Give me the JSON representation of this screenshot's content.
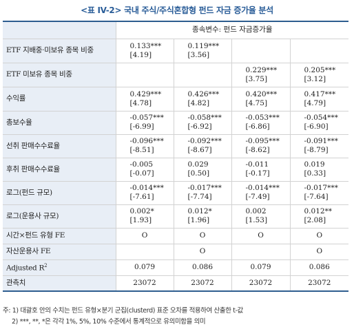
{
  "title": "<표 IV-2> 국내 주식/주식혼합형 펀드 자금 증가율 분석",
  "header": {
    "dependent_variable": "종속변수: 펀드 자금증가율"
  },
  "rows": [
    {
      "label": "ETF 지배중·미보유 종목 비중",
      "cells": [
        [
          "0.133***",
          "[4.19]"
        ],
        [
          "0.119***",
          "[3.56]"
        ],
        [
          "",
          ""
        ],
        [
          "",
          ""
        ]
      ]
    },
    {
      "label": "ETF 미보유 종목 비중",
      "cells": [
        [
          "",
          ""
        ],
        [
          "",
          ""
        ],
        [
          "0.229***",
          "[3.75]"
        ],
        [
          "0.205***",
          "[3.12]"
        ]
      ]
    },
    {
      "label": "수익률",
      "cells": [
        [
          "0.429***",
          "[4.78]"
        ],
        [
          "0.426***",
          "[4.82]"
        ],
        [
          "0.420***",
          "[4.75]"
        ],
        [
          "0.417***",
          "[4.79]"
        ]
      ]
    },
    {
      "label": "총보수율",
      "cells": [
        [
          "-0.057***",
          "[-6.99]"
        ],
        [
          "-0.058***",
          "[-6.92]"
        ],
        [
          "-0.053***",
          "[-6.86]"
        ],
        [
          "-0.054***",
          "[-6.90]"
        ]
      ]
    },
    {
      "label": "선취 판매수수료율",
      "cells": [
        [
          "-0.096***",
          "[-8.51]"
        ],
        [
          "-0.092***",
          "[-8.67]"
        ],
        [
          "-0.095***",
          "[-8.62]"
        ],
        [
          "-0.091***",
          "[-8.79]"
        ]
      ]
    },
    {
      "label": "후취 판매수수료율",
      "cells": [
        [
          "-0.005",
          "[-0.07]"
        ],
        [
          "0.029",
          "[0.50]"
        ],
        [
          "-0.011",
          "[-0.17]"
        ],
        [
          "0.019",
          "[0.33]"
        ]
      ]
    },
    {
      "label": "로그(펀드 규모)",
      "cells": [
        [
          "-0.014***",
          "[-7.61]"
        ],
        [
          "-0.017***",
          "[-7.74]"
        ],
        [
          "-0.014***",
          "[-7.49]"
        ],
        [
          "-0.017***",
          "[-7.64]"
        ]
      ]
    },
    {
      "label": "로그(운용사 규모)",
      "cells": [
        [
          "0.002*",
          "[1.93]"
        ],
        [
          "0.012*",
          "[1.96]"
        ],
        [
          "0.002",
          "[1.53]"
        ],
        [
          "0.012**",
          "[2.08]"
        ]
      ]
    }
  ],
  "fe_rows": [
    {
      "label": "시간×펀드 유형 FE",
      "cells": [
        "O",
        "O",
        "O",
        "O"
      ]
    },
    {
      "label": "자산운용사 FE",
      "cells": [
        "",
        "O",
        "",
        "O"
      ]
    }
  ],
  "stat_rows": [
    {
      "label": "Adjusted R",
      "sup": "2",
      "cells": [
        "0.079",
        "0.086",
        "0.079",
        "0.086"
      ]
    },
    {
      "label": "관측치",
      "cells": [
        "23072",
        "23072",
        "23072",
        "23072"
      ]
    }
  ],
  "notes": [
    "주: 1) 대괄호 안의 수치는 펀드 유형×분기 군집(clusterd) 표준 오차를 적용하여 산출한 t-값",
    "2) ***, **, *은 각각 1%, 5%, 10% 수준에서 통계적으로 유의미함을 의미"
  ]
}
